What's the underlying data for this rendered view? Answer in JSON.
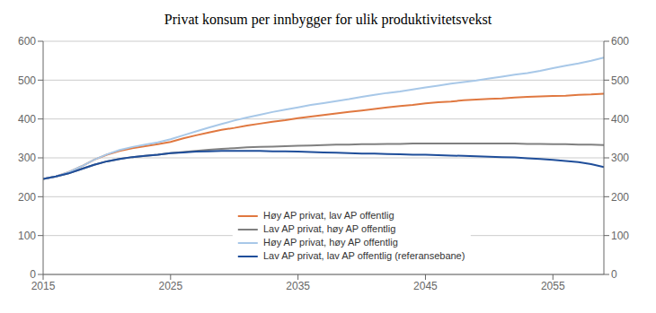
{
  "chart_data": {
    "type": "line",
    "title": "Privat konsum per innbygger for ulik produktivitetsvekst",
    "x": [
      2015,
      2016,
      2017,
      2018,
      2019,
      2020,
      2021,
      2022,
      2023,
      2024,
      2025,
      2026,
      2027,
      2028,
      2029,
      2030,
      2031,
      2032,
      2033,
      2034,
      2035,
      2036,
      2037,
      2038,
      2039,
      2040,
      2041,
      2042,
      2043,
      2044,
      2045,
      2046,
      2047,
      2048,
      2049,
      2050,
      2051,
      2052,
      2053,
      2054,
      2055,
      2056,
      2057,
      2058,
      2059
    ],
    "xlim": [
      2015,
      2059
    ],
    "xticks": [
      2015,
      2025,
      2035,
      2045,
      2055
    ],
    "ylim": [
      0,
      600
    ],
    "yticks": [
      0,
      100,
      200,
      300,
      400,
      500,
      600
    ],
    "y2lim": [
      0,
      600
    ],
    "y2ticks": [
      0,
      100,
      200,
      300,
      400,
      500,
      600
    ],
    "grid": true,
    "legend": "bottom",
    "series": [
      {
        "name": "Høy AP privat, lav AP offentlig",
        "color": "#E07840",
        "values": [
          246,
          252,
          263,
          278,
          295,
          308,
          318,
          325,
          330,
          335,
          341,
          350,
          358,
          365,
          372,
          377,
          383,
          388,
          393,
          397,
          402,
          406,
          410,
          414,
          418,
          422,
          426,
          430,
          433,
          436,
          440,
          443,
          445,
          448,
          450,
          452,
          453,
          455,
          457,
          458,
          459,
          460,
          462,
          463,
          465
        ]
      },
      {
        "name": "Lav AP privat, høy AP offentlig",
        "color": "#808080",
        "values": [
          246,
          252,
          260,
          271,
          282,
          291,
          297,
          302,
          305,
          308,
          312,
          315,
          318,
          321,
          323,
          325,
          327,
          328,
          329,
          330,
          331,
          332,
          333,
          334,
          334,
          335,
          335,
          336,
          336,
          337,
          337,
          337,
          337,
          337,
          337,
          337,
          337,
          337,
          336,
          336,
          335,
          335,
          334,
          334,
          333
        ]
      },
      {
        "name": "Høy AP privat, høy AP offentlig",
        "color": "#A8C8E8",
        "values": [
          246,
          252,
          263,
          278,
          295,
          309,
          320,
          328,
          334,
          340,
          348,
          358,
          368,
          378,
          387,
          396,
          404,
          411,
          418,
          424,
          430,
          436,
          441,
          446,
          451,
          457,
          462,
          467,
          471,
          476,
          481,
          486,
          491,
          495,
          499,
          504,
          509,
          514,
          518,
          524,
          531,
          537,
          543,
          550,
          558
        ]
      },
      {
        "name": "Lav AP privat, lav AP offentlig (referansebane)",
        "color": "#1F4E9A",
        "values": [
          246,
          252,
          260,
          271,
          282,
          291,
          297,
          302,
          305,
          308,
          312,
          314,
          316,
          317,
          318,
          318,
          318,
          318,
          317,
          317,
          316,
          315,
          314,
          313,
          312,
          311,
          311,
          310,
          309,
          308,
          308,
          307,
          306,
          305,
          304,
          303,
          302,
          301,
          299,
          297,
          295,
          292,
          289,
          284,
          276
        ]
      }
    ]
  }
}
